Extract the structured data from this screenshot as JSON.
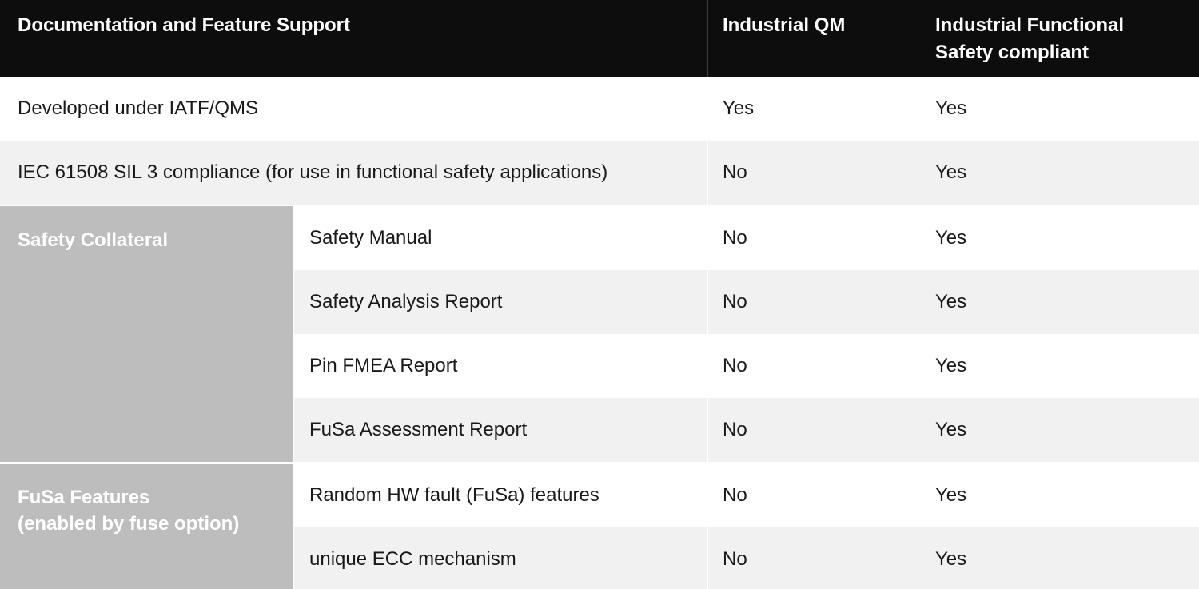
{
  "table": {
    "header": {
      "feature_col": "Documentation and Feature Support",
      "qm_col": "Industrial QM",
      "fusa_col": "Industrial Functional\nSafety compliant"
    },
    "simple_rows": [
      {
        "feature": "Developed under IATF/QMS",
        "qm": "Yes",
        "fusa": "Yes"
      },
      {
        "feature": "IEC 61508 SIL 3 compliance (for use in functional safety applications)",
        "qm": "No",
        "fusa": "Yes"
      }
    ],
    "groups": [
      {
        "label": "Safety Collateral",
        "rows": [
          {
            "feature": "Safety Manual",
            "qm": "No",
            "fusa": "Yes"
          },
          {
            "feature": "Safety Analysis Report",
            "qm": "No",
            "fusa": "Yes"
          },
          {
            "feature": "Pin FMEA Report",
            "qm": "No",
            "fusa": "Yes"
          },
          {
            "feature": "FuSa Assessment Report",
            "qm": "No",
            "fusa": "Yes"
          }
        ]
      },
      {
        "label": "FuSa Features\n(enabled by fuse option)",
        "rows": [
          {
            "feature": "Random HW fault (FuSa) features",
            "qm": "No",
            "fusa": "Yes"
          },
          {
            "feature": "unique ECC mechanism",
            "qm": "No",
            "fusa": "Yes"
          }
        ]
      }
    ],
    "colors": {
      "header_bg": "#0d0d0d",
      "header_divider": "#3e3e3e",
      "row_alt_bg": "#f1f1f1",
      "group_label_bg": "#bdbdbd",
      "body_text": "#191919",
      "header_text": "#ffffff"
    }
  }
}
